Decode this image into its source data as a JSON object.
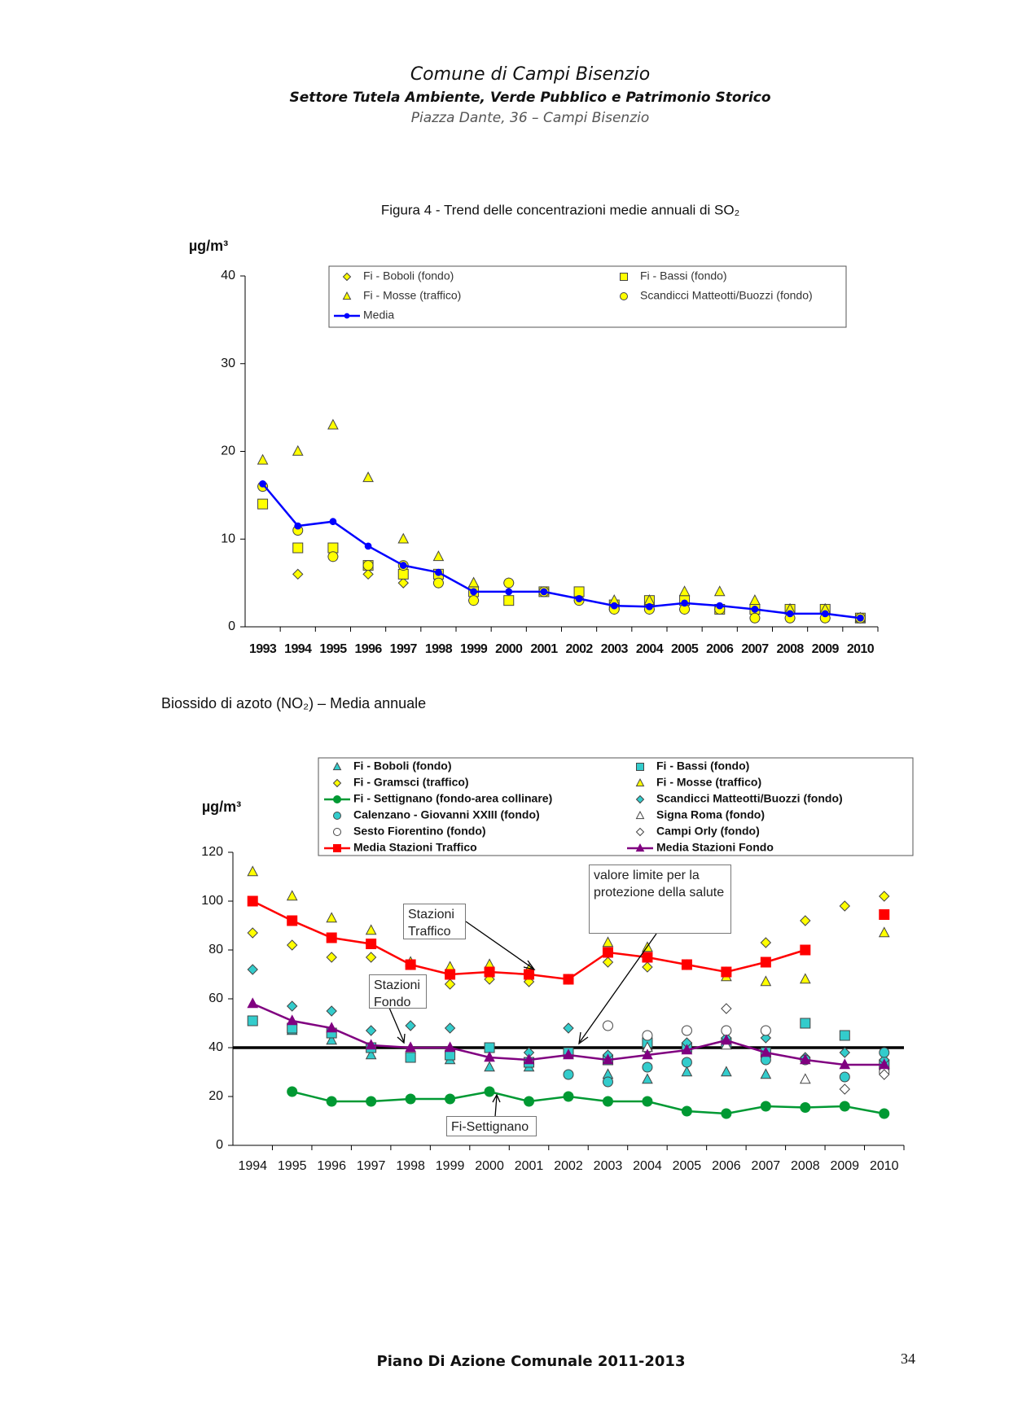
{
  "header": {
    "title": "Comune di Campi Bisenzio",
    "subtitle": "Settore Tutela Ambiente, Verde Pubblico e Patrimonio Storico",
    "address": "Piazza Dante, 36 – Campi Bisenzio"
  },
  "chart_data": [
    {
      "type": "line",
      "title": "Figura 4 -  Trend delle concentrazioni medie annuali di SO₂",
      "y_label": "µg/m³",
      "categories": [
        "1993",
        "1994",
        "1995",
        "1996",
        "1997",
        "1998",
        "1999",
        "2000",
        "2001",
        "2002",
        "2003",
        "2004",
        "2005",
        "2006",
        "2007",
        "2008",
        "2009",
        "2010"
      ],
      "ylim": [
        0,
        40
      ],
      "yticks": [
        0,
        10,
        20,
        30,
        40
      ],
      "grid": false,
      "series": [
        {
          "name": "Fi - Boboli (fondo)",
          "color": "#ffff00",
          "marker": "diamond",
          "line": false,
          "values": [
            16,
            6,
            8,
            6,
            5,
            5,
            3,
            5,
            4,
            3,
            2,
            2,
            2,
            2,
            1,
            1,
            1,
            1
          ]
        },
        {
          "name": "Fi - Bassi (fondo)",
          "color": "#ffff00",
          "marker": "square",
          "line": false,
          "values": [
            14,
            9,
            9,
            7,
            6,
            6,
            4,
            3,
            4,
            4,
            2.5,
            3,
            3,
            2,
            2,
            2,
            2,
            1
          ]
        },
        {
          "name": "Fi - Mosse (traffico)",
          "color": "#ffff00",
          "marker": "triangle",
          "line": false,
          "values": [
            19,
            20,
            23,
            17,
            10,
            8,
            5,
            null,
            null,
            null,
            3,
            3,
            4,
            4,
            3,
            2,
            2,
            1
          ]
        },
        {
          "name": "Scandicci Matteotti/Buozzi (fondo)",
          "color": "#ffff00",
          "marker": "circle",
          "line": false,
          "values": [
            16,
            11,
            8,
            7,
            7,
            5,
            3,
            5,
            4,
            3,
            2,
            2,
            2,
            2,
            1,
            1,
            1,
            1
          ]
        },
        {
          "name": "Media",
          "color": "#0000ff",
          "marker": "dot",
          "line": true,
          "values": [
            16.3,
            11.5,
            12,
            9.2,
            7,
            6.2,
            4,
            4,
            4,
            3.2,
            2.4,
            2.3,
            2.7,
            2.4,
            2,
            1.5,
            1.5,
            1
          ]
        }
      ]
    },
    {
      "type": "line",
      "title": "Biossido di azoto (NO₂) – Media annuale",
      "y_label": "µg/m³",
      "categories": [
        "1994",
        "1995",
        "1996",
        "1997",
        "1998",
        "1999",
        "2000",
        "2001",
        "2002",
        "2003",
        "2004",
        "2005",
        "2006",
        "2007",
        "2008",
        "2009",
        "2010"
      ],
      "ylim": [
        0,
        120
      ],
      "yticks": [
        0,
        20,
        40,
        60,
        80,
        100,
        120
      ],
      "grid": false,
      "limit_line": 40,
      "annotations": [
        "valore limite per la protezione della salute",
        "Stazioni Traffico",
        "Stazioni Fondo",
        "Fi-Settignano"
      ],
      "series": [
        {
          "name": "Fi - Boboli (fondo)",
          "color": "#33cccc",
          "marker": "triangle",
          "line": false,
          "values": [
            null,
            47,
            43,
            37,
            null,
            35,
            32,
            32,
            null,
            29,
            27,
            30,
            30,
            29,
            null,
            null,
            null
          ]
        },
        {
          "name": "Fi - Bassi (fondo)",
          "color": "#33cccc",
          "marker": "square",
          "line": false,
          "values": [
            51,
            48,
            46,
            40,
            36,
            37,
            40,
            34,
            38,
            35,
            42,
            40,
            42,
            38,
            50,
            45,
            33
          ]
        },
        {
          "name": "Fi - Gramsci (traffico)",
          "color": "#ffff00",
          "marker": "diamond",
          "line": false,
          "values": [
            87,
            82,
            77,
            77,
            74,
            66,
            68,
            67,
            68,
            75,
            73,
            74,
            71,
            83,
            92,
            98,
            102
          ]
        },
        {
          "name": "Fi - Mosse (traffico)",
          "color": "#ffff00",
          "marker": "triangle",
          "line": false,
          "values": [
            112,
            102,
            93,
            88,
            75,
            73,
            74,
            72,
            null,
            83,
            81,
            null,
            69,
            67,
            68,
            null,
            87
          ]
        },
        {
          "name": "Fi - Settignano (fondo-area collinare)",
          "color": "#009933",
          "marker": "circle",
          "line": true,
          "values": [
            null,
            22,
            18,
            18,
            19,
            19,
            22,
            18,
            20,
            18,
            18,
            14,
            13,
            16,
            15.5,
            16,
            13
          ]
        },
        {
          "name": "Scandicci Matteotti/Buozzi (fondo)",
          "color": "#33cccc",
          "marker": "diamond",
          "line": false,
          "values": [
            72,
            57,
            55,
            47,
            49,
            48,
            null,
            38,
            48,
            37,
            39,
            42,
            44,
            44,
            36,
            38,
            35
          ]
        },
        {
          "name": "Calenzano - Giovanni XXIII (fondo)",
          "color": "#33cccc",
          "marker": "circle",
          "line": false,
          "values": [
            null,
            null,
            null,
            null,
            null,
            null,
            null,
            null,
            29,
            26,
            32,
            34,
            null,
            35,
            35,
            28,
            38
          ]
        },
        {
          "name": "Signa Roma (fondo)",
          "color": "#ffffff",
          "marker": "triangle",
          "line": false,
          "values": [
            null,
            null,
            null,
            null,
            null,
            null,
            null,
            null,
            null,
            null,
            40,
            null,
            41,
            null,
            27,
            null,
            null
          ]
        },
        {
          "name": "Sesto Fiorentino (fondo)",
          "color": "#ffffff",
          "marker": "circle",
          "line": false,
          "values": [
            null,
            null,
            null,
            null,
            null,
            null,
            null,
            null,
            null,
            49,
            45,
            47,
            47,
            47,
            null,
            null,
            30
          ]
        },
        {
          "name": "Campi Orly (fondo)",
          "color": "#ffffff",
          "marker": "diamond",
          "line": false,
          "values": [
            null,
            null,
            null,
            null,
            null,
            null,
            null,
            null,
            null,
            null,
            null,
            null,
            56,
            null,
            null,
            23,
            29
          ]
        },
        {
          "name": "Media Stazioni Traffico",
          "color": "#ff0000",
          "marker": "square",
          "line": true,
          "values": [
            100,
            92,
            85,
            82.5,
            74,
            70,
            71,
            70,
            68,
            79,
            77,
            74,
            71,
            75,
            80,
            null,
            94.5
          ]
        },
        {
          "name": "Media Stazioni Fondo",
          "color": "#800080",
          "marker": "triangle",
          "line": true,
          "values": [
            58,
            51,
            48,
            41,
            40,
            40,
            36,
            35,
            37,
            35,
            37,
            39,
            43,
            38,
            35,
            33,
            33
          ]
        }
      ]
    }
  ],
  "footer": {
    "text": "Piano Di Azione Comunale  2011-2013",
    "page": "34"
  }
}
